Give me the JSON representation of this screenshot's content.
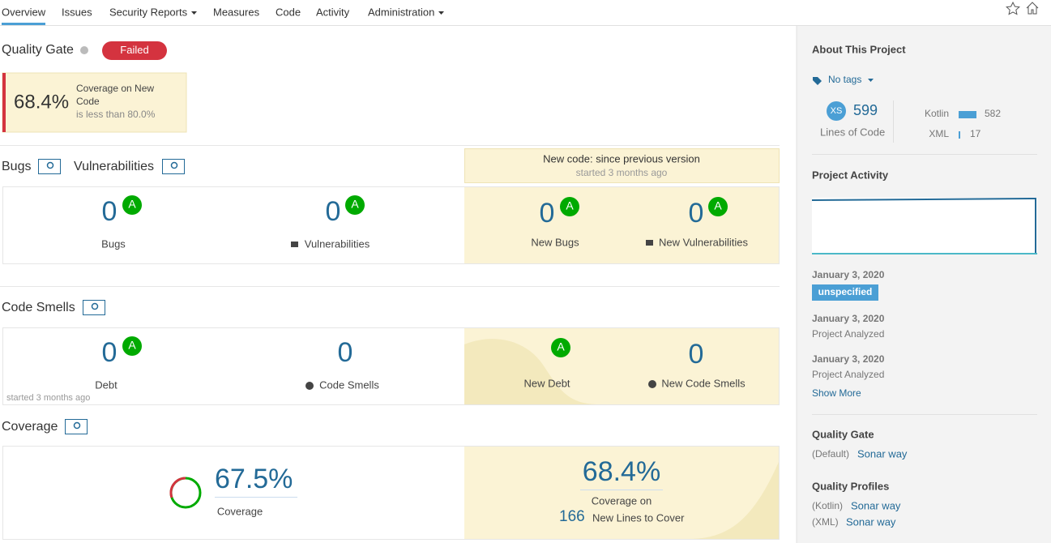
{
  "nav": {
    "items": [
      "Overview",
      "Issues",
      "Security Reports",
      "Measures",
      "Code",
      "Activity",
      "Administration"
    ]
  },
  "quality_gate": {
    "title": "Quality Gate",
    "status": "Failed",
    "condition": {
      "value": "68.4%",
      "label": "Coverage on New Code",
      "detail": "is less than 80.0%"
    }
  },
  "new_code_period": {
    "title": "New code: since previous version",
    "started": "started 3 months ago"
  },
  "reliability_security": {
    "titles": [
      "Bugs",
      "Vulnerabilities"
    ],
    "metrics": [
      {
        "value": 0,
        "rating": "A",
        "label": "Bugs"
      },
      {
        "value": 0,
        "rating": "A",
        "label": "Vulnerabilities"
      },
      {
        "value": 0,
        "rating": "A",
        "label": "New Bugs"
      },
      {
        "value": 0,
        "rating": "A",
        "label": "New Vulnerabilities"
      }
    ]
  },
  "maintainability": {
    "title": "Code Smells",
    "started": "started 3 months ago",
    "metrics": [
      {
        "value": 0,
        "rating": "A",
        "label": "Debt"
      },
      {
        "value": 0,
        "label": "Code Smells"
      },
      {
        "rating": "A",
        "label": "New Debt"
      },
      {
        "value": 0,
        "label": "New Code Smells"
      }
    ]
  },
  "coverage": {
    "title": "Coverage",
    "overall": {
      "value": "67.5%",
      "label": "Coverage"
    },
    "new": {
      "value": "68.4%",
      "label": "Coverage on",
      "lines": 166,
      "lines_label": "New Lines to Cover"
    }
  },
  "sidebar": {
    "about": {
      "title": "About This Project",
      "tags": "No tags",
      "size": "XS",
      "lines": 599,
      "lines_label": "Lines of Code",
      "languages": [
        {
          "name": "Kotlin",
          "value": 582
        },
        {
          "name": "XML",
          "value": 17
        }
      ]
    },
    "activity": {
      "title": "Project Activity",
      "events": [
        {
          "date": "January 3, 2020",
          "badge": "unspecified"
        },
        {
          "date": "January 3, 2020",
          "text": "Project Analyzed"
        },
        {
          "date": "January 3, 2020",
          "text": "Project Analyzed"
        }
      ],
      "more": "Show More"
    },
    "quality_gate": {
      "title": "Quality Gate",
      "scope": "(Default)",
      "name": "Sonar way"
    },
    "quality_profiles": {
      "title": "Quality Profiles",
      "items": [
        {
          "language": "(Kotlin)",
          "name": "Sonar way"
        },
        {
          "language": "(XML)",
          "name": "Sonar way"
        }
      ]
    }
  }
}
